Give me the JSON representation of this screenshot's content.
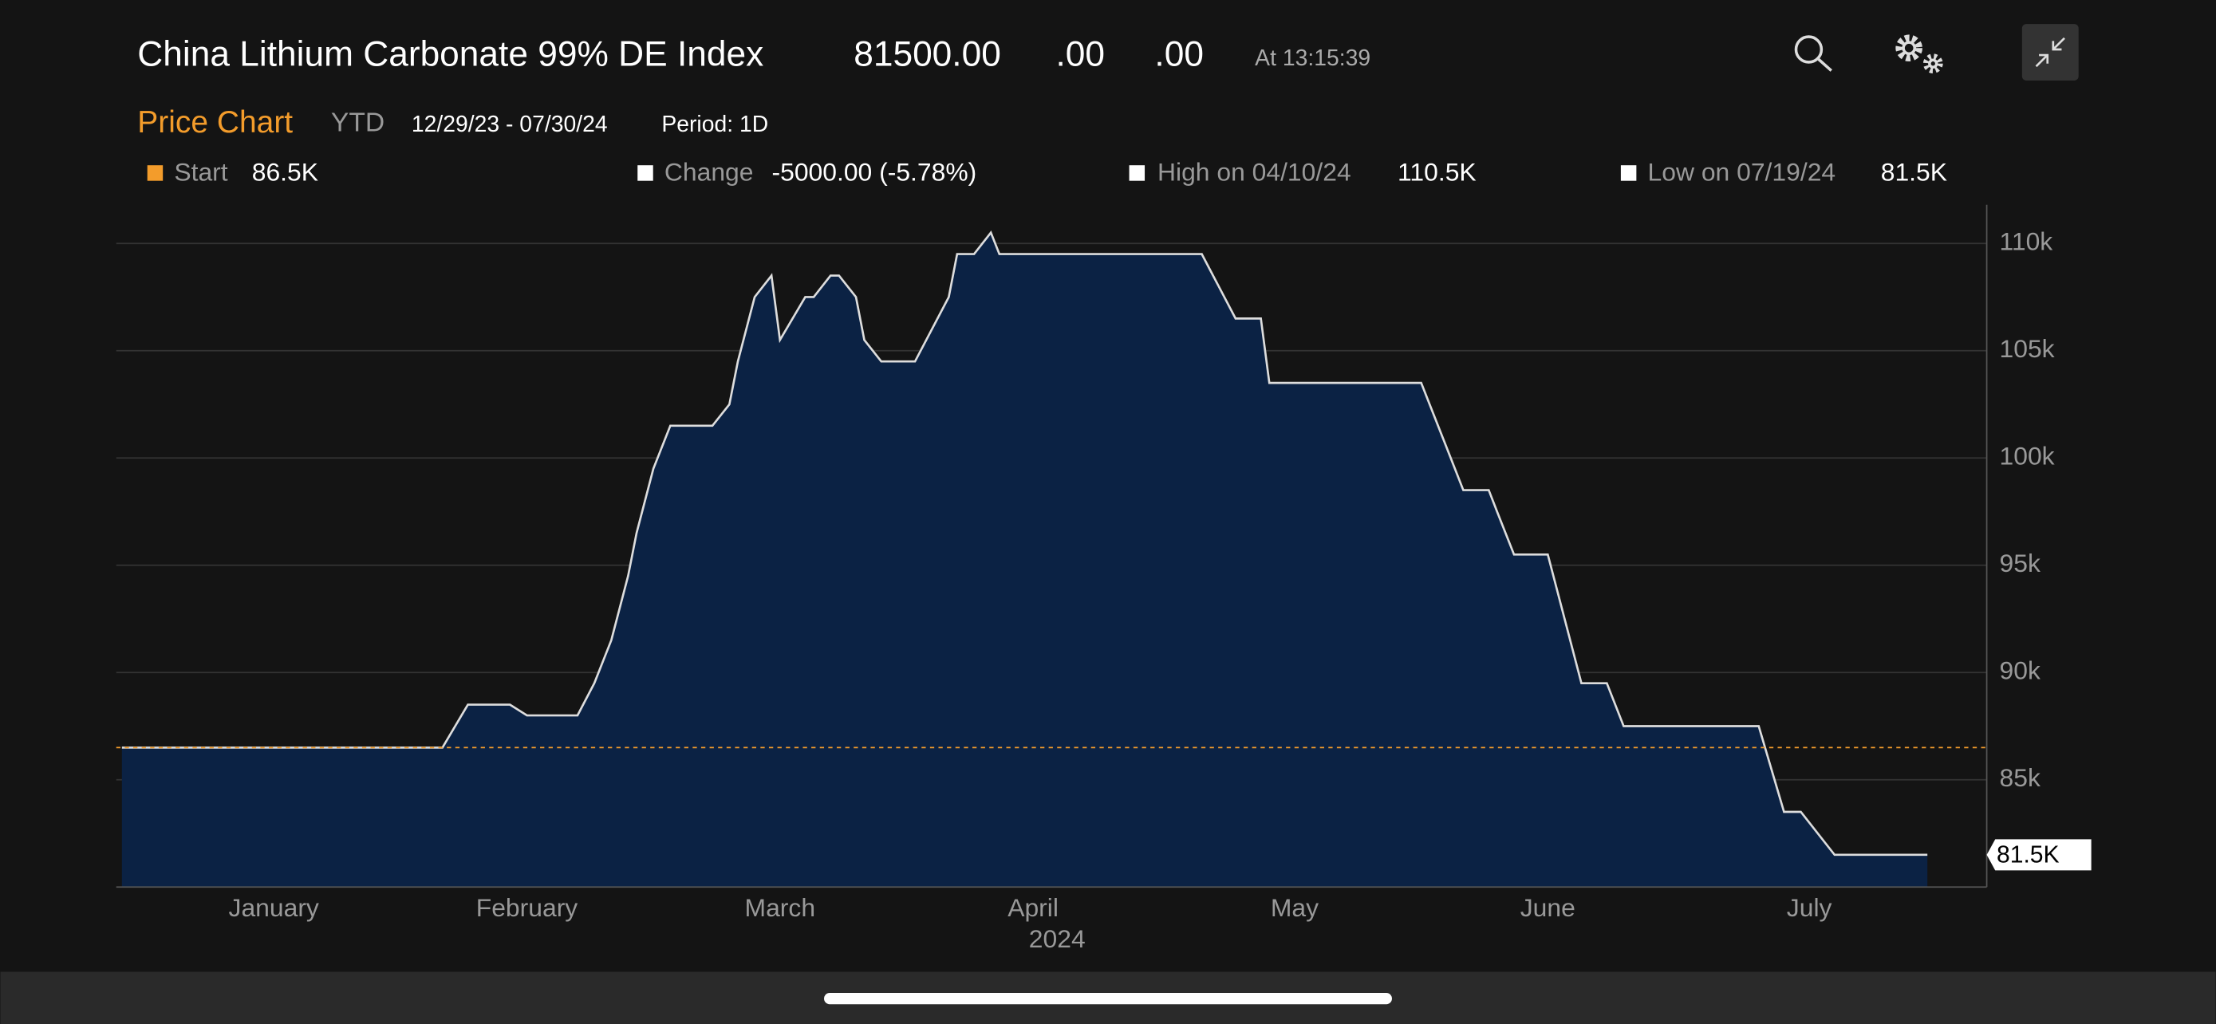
{
  "header": {
    "title": "China Lithium Carbonate 99% DE Index",
    "price": "81500.00",
    "change": ".00",
    "pct_change": ".00",
    "time": "At 13:15:39"
  },
  "subheader": {
    "title": "Price Chart",
    "range": "YTD",
    "dates": "12/29/23 - 07/30/24",
    "period": "Period: 1D"
  },
  "stats": [
    {
      "label": "Start",
      "value": "86.5K"
    },
    {
      "label": "Change",
      "value": "-5000.00 (-5.78%)"
    },
    {
      "label": "High on 04/10/24",
      "value": "110.5K"
    },
    {
      "label": "Low on 07/19/24",
      "value": "81.5K"
    }
  ],
  "chart_data": {
    "type": "area",
    "xlabel": "2024",
    "x": [
      "2023-12-29",
      "2024-02-05",
      "2024-02-08",
      "2024-02-13",
      "2024-02-15",
      "2024-02-21",
      "2024-02-23",
      "2024-02-25",
      "2024-02-27",
      "2024-02-28",
      "2024-03-01",
      "2024-03-03",
      "2024-03-08",
      "2024-03-10",
      "2024-03-11",
      "2024-03-13",
      "2024-03-15",
      "2024-03-16",
      "2024-03-19",
      "2024-03-20",
      "2024-03-22",
      "2024-03-23",
      "2024-03-25",
      "2024-03-26",
      "2024-03-28",
      "2024-04-01",
      "2024-04-05",
      "2024-04-06",
      "2024-04-08",
      "2024-04-10",
      "2024-04-11",
      "2024-05-05",
      "2024-05-09",
      "2024-05-12",
      "2024-05-13",
      "2024-05-31",
      "2024-06-02",
      "2024-06-03",
      "2024-06-05",
      "2024-06-08",
      "2024-06-09",
      "2024-06-11",
      "2024-06-15",
      "2024-06-19",
      "2024-06-22",
      "2024-06-24",
      "2024-07-10",
      "2024-07-13",
      "2024-07-15",
      "2024-07-19",
      "2024-07-30"
    ],
    "values": [
      86500,
      86500,
      88500,
      88500,
      88000,
      88000,
      89500,
      91500,
      94500,
      96500,
      99500,
      101500,
      101500,
      102500,
      104500,
      107500,
      108500,
      105500,
      107500,
      107500,
      108500,
      108500,
      107500,
      105500,
      104500,
      104500,
      107500,
      109500,
      109500,
      110500,
      109500,
      109500,
      106500,
      106500,
      103500,
      103500,
      101500,
      100500,
      98500,
      98500,
      97500,
      95500,
      95500,
      89500,
      89500,
      87500,
      87500,
      83500,
      83500,
      81500,
      81500
    ],
    "last_label": "81.5K",
    "baseline": 86500,
    "color": "#0b2244",
    "line_color": "#dddddd",
    "baseline_color": "#f39c2b",
    "xlim": [
      "2023-12-29",
      "2024-07-30"
    ],
    "xticks": [
      {
        "value": "2024-01-16",
        "label": "January"
      },
      {
        "value": "2024-02-15",
        "label": "February"
      },
      {
        "value": "2024-03-16",
        "label": "March"
      },
      {
        "value": "2024-04-15",
        "label": "April"
      },
      {
        "value": "2024-05-16",
        "label": "May"
      },
      {
        "value": "2024-06-15",
        "label": "June"
      },
      {
        "value": "2024-07-16",
        "label": "July"
      }
    ],
    "ylim": [
      80000,
      111800
    ],
    "yticks": [
      {
        "value": 85000,
        "label": "85k"
      },
      {
        "value": 90000,
        "label": "90k"
      },
      {
        "value": 95000,
        "label": "95k"
      },
      {
        "value": 100000,
        "label": "100k"
      },
      {
        "value": 105000,
        "label": "105k"
      },
      {
        "value": 110000,
        "label": "110k"
      }
    ],
    "grid": true
  }
}
